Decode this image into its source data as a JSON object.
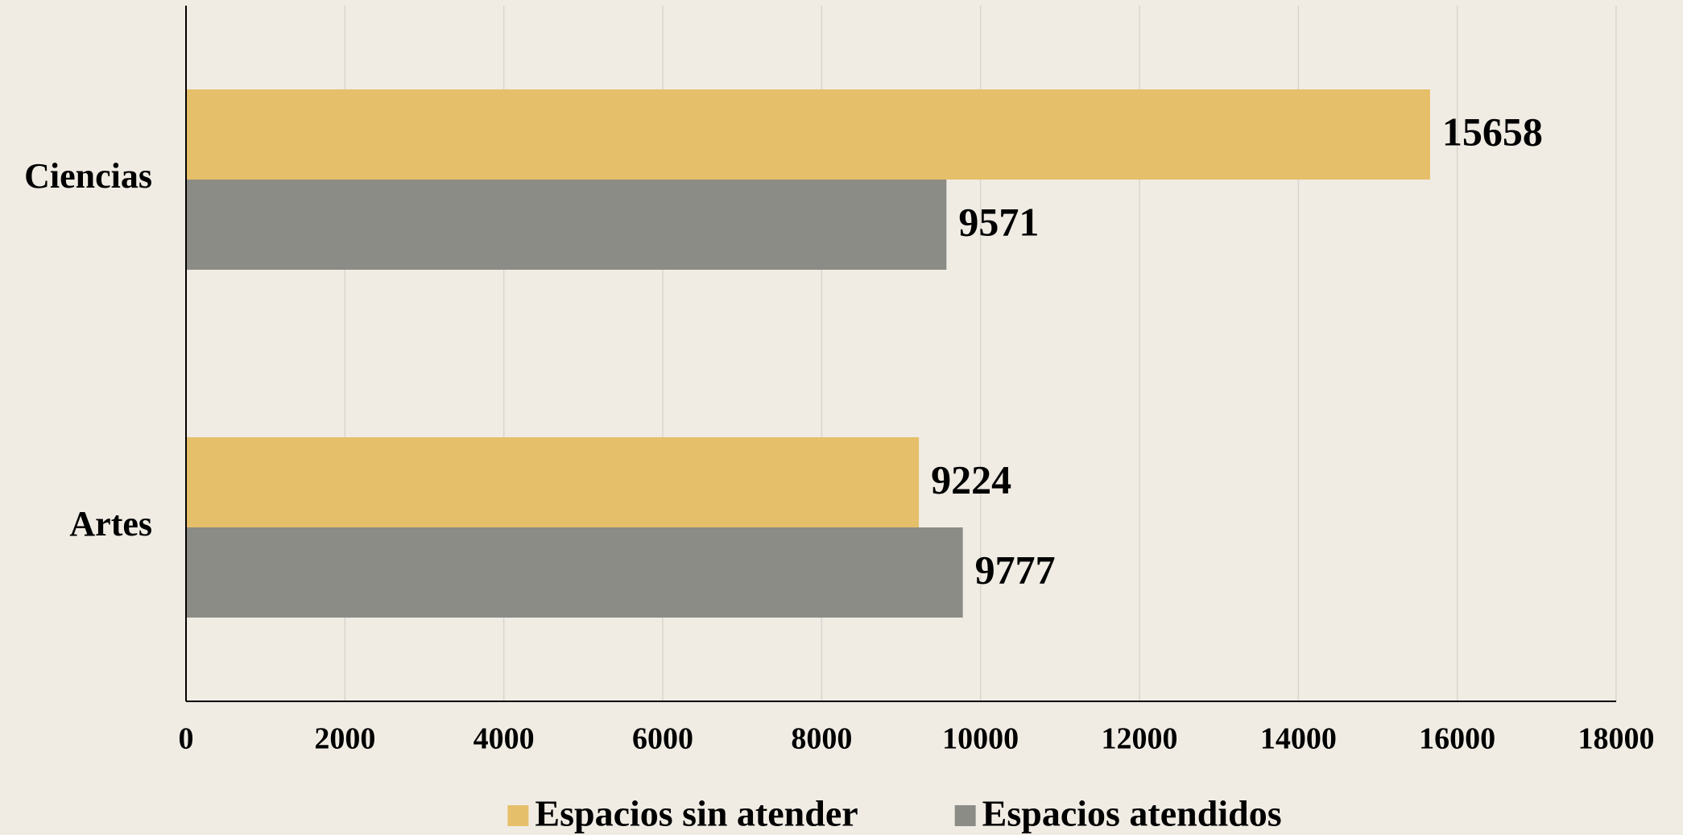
{
  "chart_data": {
    "type": "hbar",
    "categories": [
      "Ciencias",
      "Artes"
    ],
    "series": [
      {
        "name": "Espacios sin atender",
        "color": "#e6bf6a",
        "values": [
          15658,
          9224
        ]
      },
      {
        "name": "Espacios atendidos",
        "color": "#8c8c87",
        "values": [
          9571,
          9777
        ]
      }
    ],
    "xlim": [
      0,
      18000
    ],
    "xticks": [
      0,
      2000,
      4000,
      6000,
      8000,
      10000,
      12000,
      14000,
      16000,
      18000
    ],
    "grid": true,
    "legend": "bottom"
  }
}
